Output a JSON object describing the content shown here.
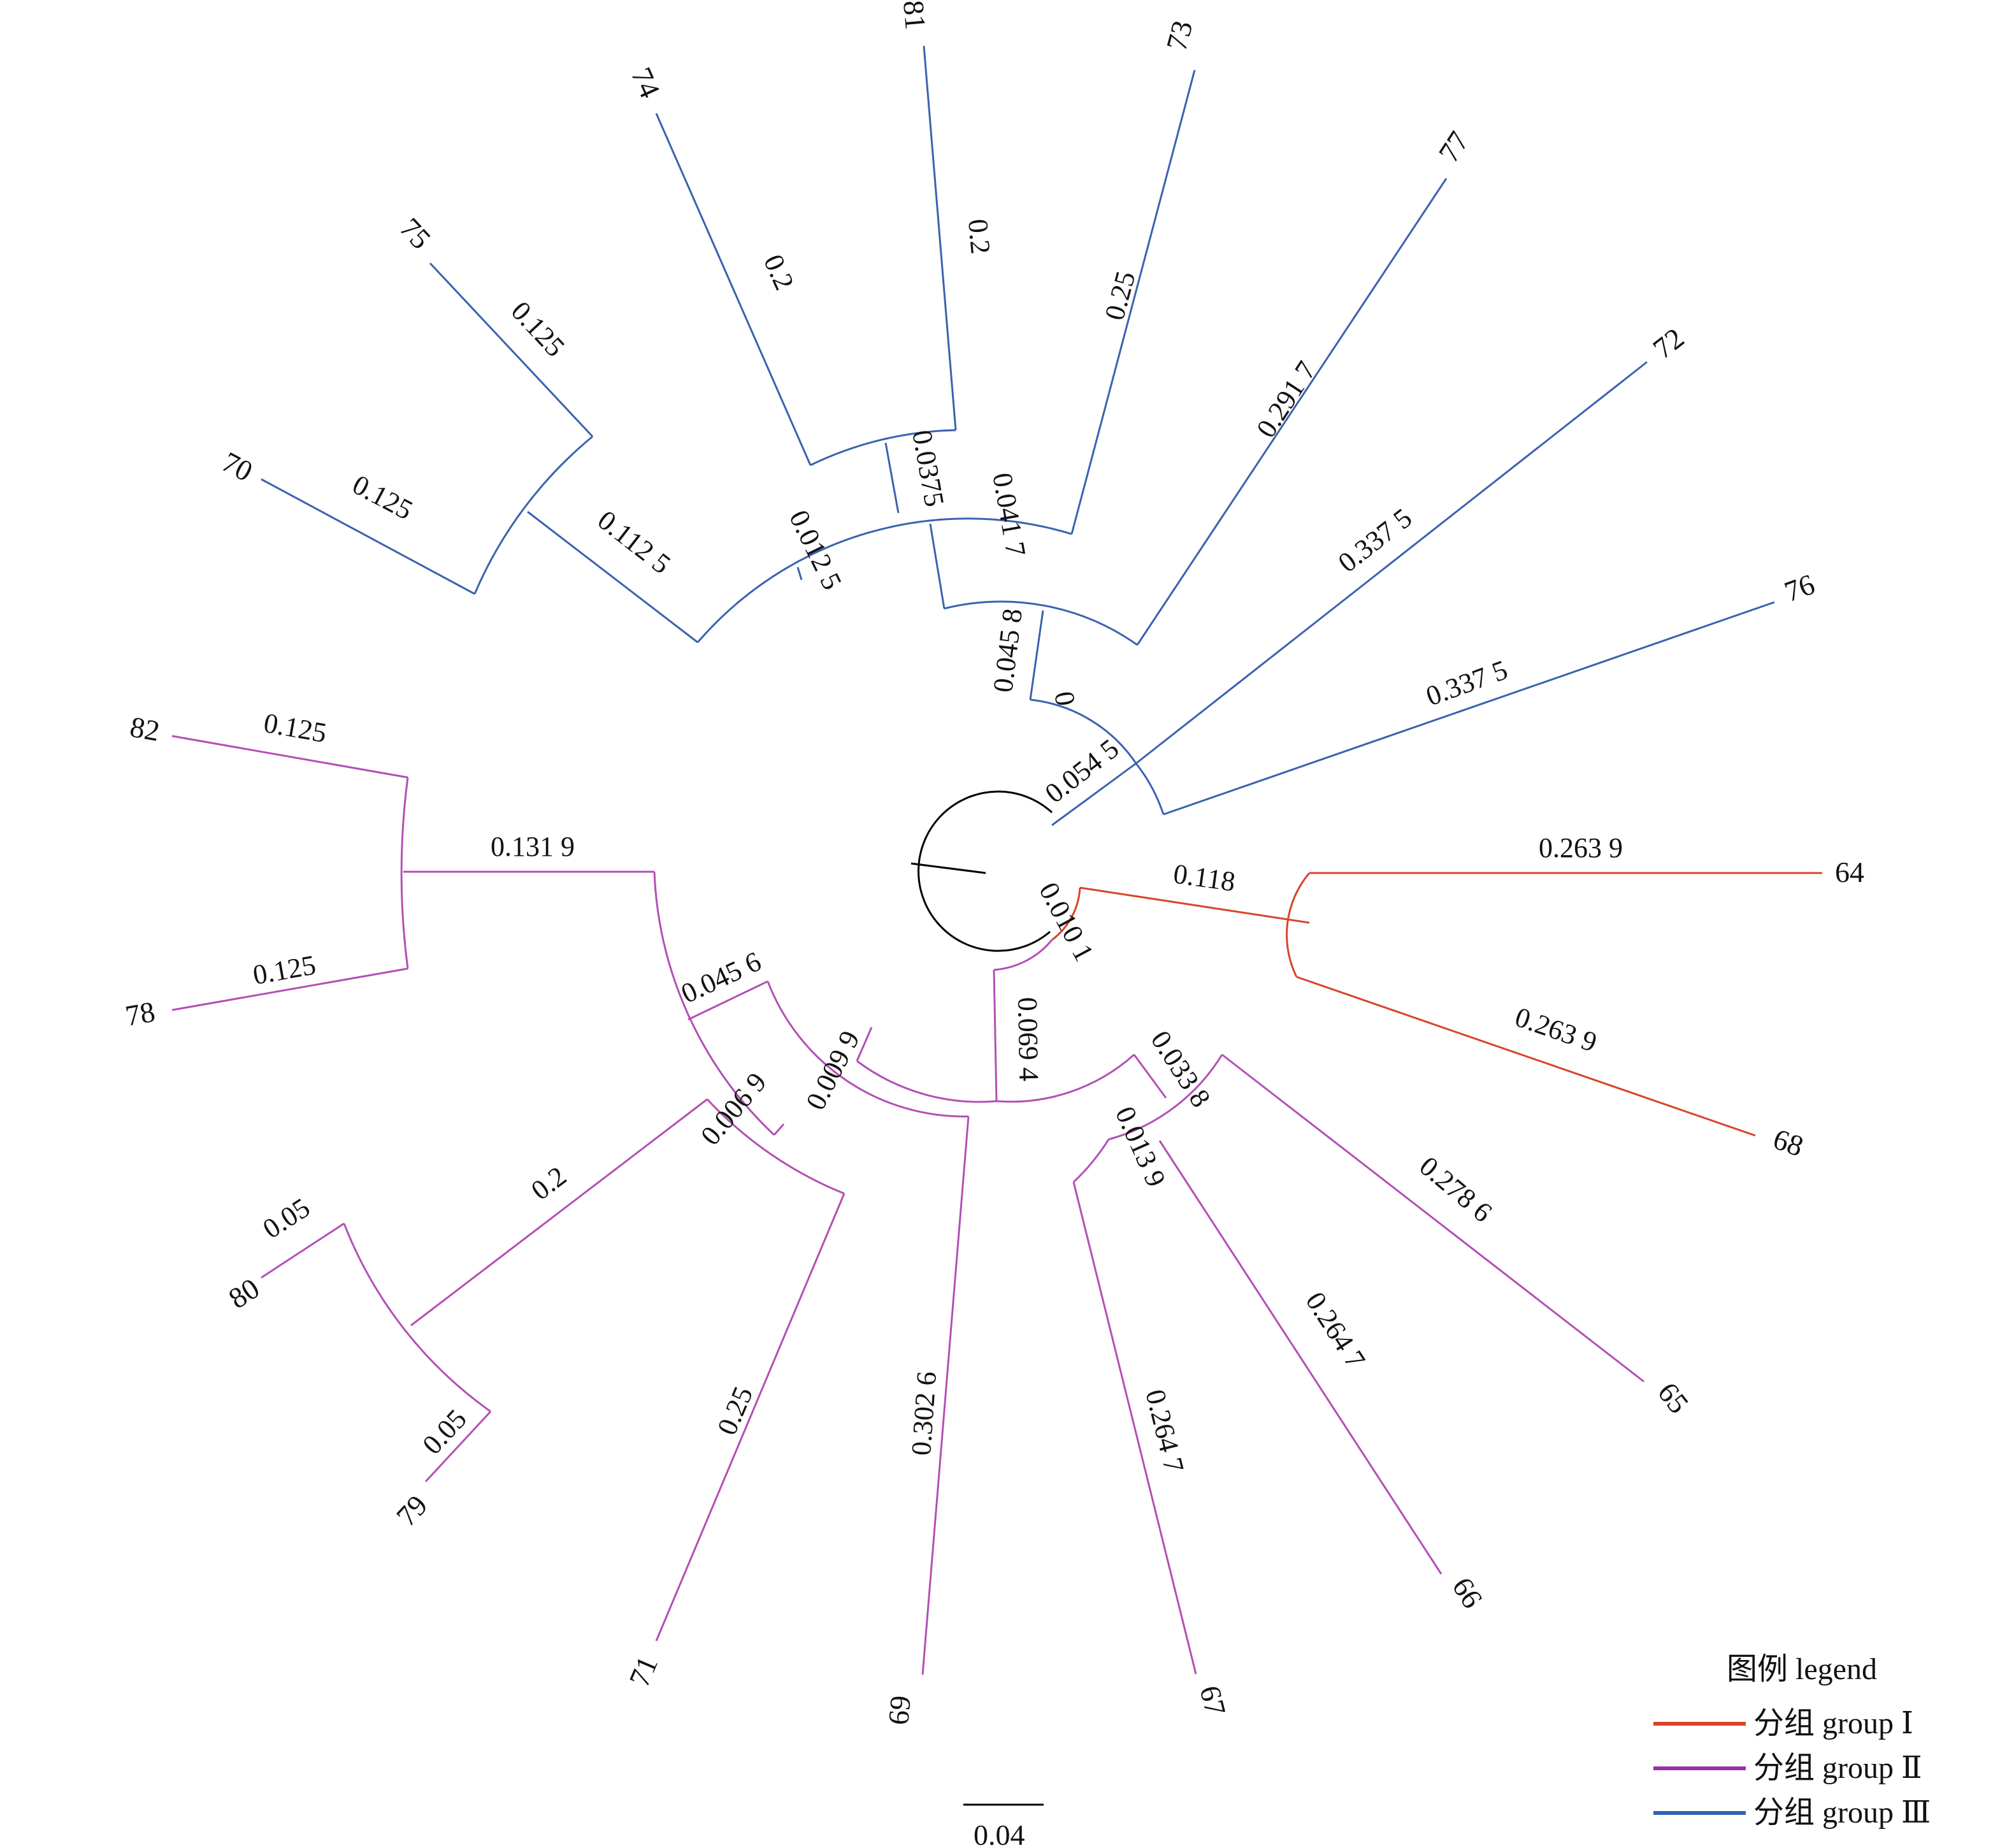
{
  "colors": {
    "root": "#000000",
    "group_I": "#d9442c",
    "group_II": "#b44fb4",
    "group_III": "#3b62b0",
    "legend_I": "#d9442c",
    "legend_II": "#9b2fa6",
    "legend_III": "#2e62b7"
  },
  "legend": {
    "title": "图例 legend",
    "items": [
      {
        "label": "分组 group Ⅰ",
        "color_key": "legend_I"
      },
      {
        "label": "分组 group Ⅱ",
        "color_key": "legend_II"
      },
      {
        "label": "分组 group Ⅲ",
        "color_key": "legend_III"
      }
    ]
  },
  "scale_bar": {
    "label": "0.04"
  },
  "leaves": {
    "64": "64",
    "68": "68",
    "65": "65",
    "66": "66",
    "67": "67",
    "69": "69",
    "71": "71",
    "79": "79",
    "80": "80",
    "78": "78",
    "82": "82",
    "70": "70",
    "75": "75",
    "74": "74",
    "81": "81",
    "73": "73",
    "77": "77",
    "72": "72",
    "76": "76"
  },
  "branch_lengths": {
    "b118": "0.118",
    "b2639a": "0.263 9",
    "b2639b": "0.263 9",
    "b0101": "0.010 1",
    "b0694": "0.069 4",
    "b0338": "0.033 8",
    "b2786": "0.278 6",
    "b0139": "0.013 9",
    "b2647a": "0.264 7",
    "b2647b": "0.264 7",
    "b0099": "0.009 9",
    "b3026": "0.302 6",
    "b0456": "0.045 6",
    "b0069": "0.006 9",
    "b025_71": "0.25",
    "b02_grp": "0.2",
    "b005a": "0.05",
    "b005b": "0.05",
    "b1319": "0.131 9",
    "b125_82": "0.125",
    "b125_78": "0.125",
    "b0545": "0.054 5",
    "b3375a": "0.337 5",
    "b3375b": "0.337 5",
    "b0": "0",
    "b0458": "0.045 8",
    "b2917": "0.291 7",
    "b0417": "0.041 7",
    "b025_73": "0.25",
    "b0125": "0.012 5",
    "b1125": "0.112 5",
    "b125_70": "0.125",
    "b125_75": "0.125",
    "b0375": "0.0375",
    "b02_74": "0.2",
    "b02_81": "0.2"
  }
}
